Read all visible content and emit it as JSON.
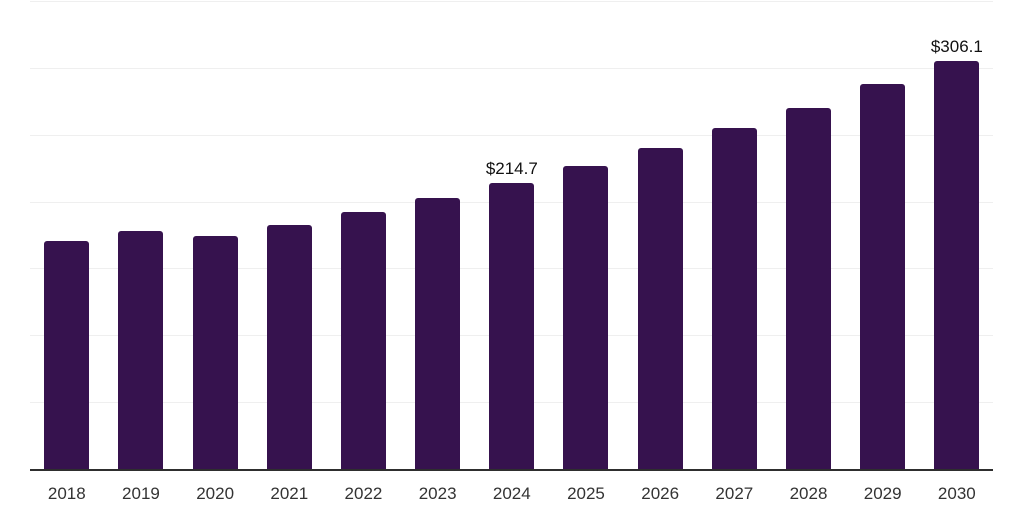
{
  "chart_data": {
    "type": "bar",
    "title": "",
    "xlabel": "",
    "ylabel": "",
    "categories": [
      "2018",
      "2019",
      "2020",
      "2021",
      "2022",
      "2023",
      "2024",
      "2025",
      "2026",
      "2027",
      "2028",
      "2029",
      "2030"
    ],
    "values": [
      171.5,
      178.5,
      175.0,
      183.4,
      192.9,
      203.5,
      214.7,
      227.4,
      240.6,
      255.5,
      270.9,
      288.4,
      306.1
    ],
    "bar_labels": [
      "",
      "",
      "",
      "",
      "",
      "",
      "$214.7",
      "",
      "",
      "",
      "",
      "",
      "$306.1"
    ],
    "ylim": [
      0,
      350
    ],
    "ytick_step": 50,
    "grid": true,
    "y_axis_labels_visible": false,
    "legend": false
  },
  "colors": {
    "bar": "#36124e",
    "axis_line": "#2e2e2e",
    "gridline": "#efefef",
    "tick_label": "#333333",
    "data_label": "#111111",
    "background": "#ffffff"
  }
}
